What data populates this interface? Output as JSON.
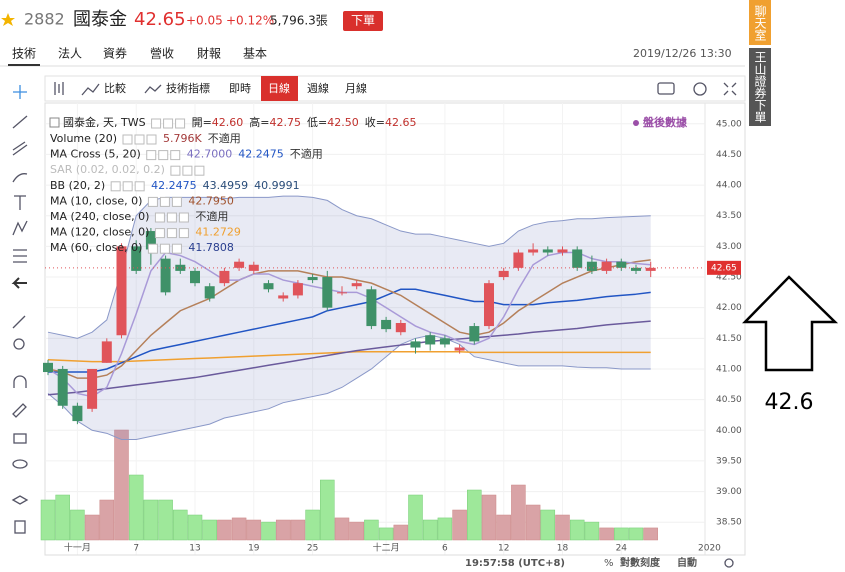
{
  "header": {
    "code": "2882",
    "name": "國泰金",
    "price": "42.65",
    "change": "+0.05",
    "change_pct": "+0.12%",
    "volume": "5,796.3張",
    "order_button": "下單"
  },
  "tabs": [
    "技術",
    "法人",
    "資券",
    "營收",
    "財報",
    "基本"
  ],
  "datetime": "2019/12/26 13:30",
  "side_tabs": [
    "聊天室",
    "王山證券下單"
  ],
  "toolbar": {
    "compare": "比較",
    "indicators": "技術指標",
    "intervals": [
      "即時",
      "日線",
      "週線",
      "月線"
    ]
  },
  "legend": {
    "symbol": "國泰金, 天, TWS",
    "ohlc": [
      {
        "label": "開=",
        "value": "42.60"
      },
      {
        "label": "高=",
        "value": "42.75"
      },
      {
        "label": "低=",
        "value": "42.50"
      },
      {
        "label": "收=",
        "value": "42.65"
      }
    ],
    "after_hours": "盤後數據",
    "indicators": [
      {
        "name": "Volume (20)",
        "readouts": [
          {
            "text": "5.796K",
            "color": "#a33a3a"
          },
          {
            "text": "不適用",
            "color": "#333333"
          }
        ]
      },
      {
        "name": "MA Cross (5, 20)",
        "readouts": [
          {
            "text": "42.7000",
            "color": "#7a6fc0"
          },
          {
            "text": "42.2475",
            "color": "#2155c4"
          },
          {
            "text": "不適用",
            "color": "#333333"
          }
        ]
      },
      {
        "name": "SAR (0.02, 0.02, 0.2)",
        "readouts": []
      },
      {
        "name": "BB (20, 2)",
        "readouts": [
          {
            "text": "42.2475",
            "color": "#2155c4"
          },
          {
            "text": "43.4959",
            "color": "#2a4d7a"
          },
          {
            "text": "40.9991",
            "color": "#2a4d7a"
          }
        ]
      },
      {
        "name": "MA (10, close, 0)",
        "readouts": [
          {
            "text": "42.7950",
            "color": "#a0522d"
          }
        ]
      },
      {
        "name": "MA (240, close, 0)",
        "readouts": [
          {
            "text": "不適用",
            "color": "#333333"
          }
        ]
      },
      {
        "name": "MA (120, close, 0)",
        "readouts": [
          {
            "text": "41.2729",
            "color": "#f0a030"
          }
        ]
      },
      {
        "name": "MA (60, close, 0)",
        "readouts": [
          {
            "text": "41.7808",
            "color": "#2a3f8f"
          }
        ]
      }
    ]
  },
  "status_bar": {
    "time": "19:57:58 (UTC+8)",
    "percent": "%",
    "log_scale": "對數刻度",
    "auto": "自動"
  },
  "annotation": "42.6",
  "chart_data": {
    "type": "candlestick",
    "categories": [
      null,
      null,
      "十一月",
      null,
      null,
      null,
      "7",
      null,
      null,
      null,
      "13",
      null,
      null,
      null,
      "19",
      null,
      null,
      null,
      "25",
      null,
      null,
      null,
      null,
      "十二月",
      null,
      null,
      null,
      "6",
      null,
      null,
      null,
      "12",
      null,
      null,
      null,
      "18",
      null,
      null,
      null,
      "24",
      null,
      null
    ],
    "x_end_label": "2020",
    "open": [
      41.1,
      41.0,
      40.4,
      40.35,
      41.1,
      41.55,
      43.0,
      43.25,
      42.8,
      42.7,
      42.6,
      42.35,
      42.4,
      42.65,
      42.6,
      42.4,
      42.15,
      42.2,
      42.5,
      42.5,
      42.25,
      42.35,
      42.3,
      41.8,
      41.6,
      41.45,
      41.55,
      41.5,
      41.3,
      41.7,
      41.7,
      42.5,
      42.65,
      42.9,
      42.95,
      42.9,
      42.95,
      42.75,
      42.6,
      42.75,
      42.65,
      42.6
    ],
    "high": [
      41.15,
      41.05,
      40.45,
      41.0,
      41.5,
      43.05,
      43.1,
      43.3,
      42.85,
      42.8,
      42.65,
      42.4,
      42.65,
      42.8,
      42.75,
      42.45,
      42.25,
      42.45,
      42.55,
      42.6,
      42.35,
      42.45,
      42.35,
      41.85,
      41.8,
      41.5,
      41.6,
      41.55,
      41.4,
      41.75,
      42.45,
      42.65,
      42.95,
      43.05,
      43.0,
      43.0,
      43.0,
      42.85,
      42.8,
      42.8,
      42.7,
      42.75
    ],
    "low": [
      40.9,
      40.35,
      40.1,
      40.3,
      41.1,
      41.5,
      42.55,
      42.7,
      42.2,
      42.55,
      42.35,
      42.1,
      42.35,
      42.6,
      42.55,
      42.25,
      42.1,
      42.15,
      42.4,
      41.95,
      42.2,
      42.3,
      41.65,
      41.6,
      41.55,
      41.25,
      41.3,
      41.35,
      41.25,
      41.4,
      41.65,
      42.45,
      42.6,
      42.85,
      42.85,
      42.85,
      42.6,
      42.55,
      42.55,
      42.6,
      42.55,
      42.5
    ],
    "close": [
      40.95,
      40.4,
      40.15,
      41.0,
      41.45,
      43.0,
      42.6,
      42.95,
      42.25,
      42.6,
      42.4,
      42.15,
      42.6,
      42.75,
      42.7,
      42.3,
      42.2,
      42.4,
      42.45,
      42.0,
      42.25,
      42.4,
      41.7,
      41.65,
      41.75,
      41.35,
      41.4,
      41.4,
      41.35,
      41.45,
      42.4,
      42.6,
      42.9,
      42.95,
      42.9,
      42.95,
      42.65,
      42.6,
      42.75,
      42.65,
      42.6,
      42.65
    ],
    "volume": [
      19.2,
      21.6,
      14.4,
      12,
      19.2,
      52.8,
      31.2,
      19.2,
      19.2,
      14.4,
      12,
      9.6,
      9.6,
      10.6,
      9.6,
      8.6,
      9.6,
      9.6,
      14.4,
      28.8,
      10.6,
      8.6,
      9.6,
      5.8,
      7.2,
      21.6,
      9.6,
      10.6,
      14.4,
      24,
      21.6,
      12,
      26.4,
      16.8,
      14.4,
      12,
      9.6,
      8.6,
      5.8,
      5.8,
      5.8,
      5.796
    ],
    "volume_lim": [
      0,
      120
    ],
    "up_color": "#e0545a",
    "down_color": "#3f9168",
    "volume_up_color": "#d9a3a6",
    "volume_down_color": "#9ee89a",
    "band": {
      "color": "#8a98c8",
      "fill": "rgba(120,130,190,0.17)",
      "upper": [
        41.6,
        41.55,
        41.5,
        41.6,
        41.8,
        42.6,
        43.5,
        43.75,
        43.8,
        43.8,
        43.8,
        43.8,
        43.78,
        43.8,
        43.8,
        43.8,
        43.82,
        43.82,
        43.8,
        43.75,
        43.6,
        43.5,
        43.45,
        43.35,
        43.25,
        43.2,
        43.2,
        43.15,
        43.1,
        43.05,
        43.0,
        43.05,
        43.25,
        43.35,
        43.4,
        43.42,
        43.45,
        43.45,
        43.47,
        43.48,
        43.49,
        43.5
      ],
      "lower": [
        40.6,
        40.4,
        40.15,
        40.0,
        39.95,
        39.85,
        39.85,
        39.9,
        39.95,
        40.0,
        40.05,
        40.1,
        40.2,
        40.25,
        40.3,
        40.35,
        40.45,
        40.5,
        40.55,
        40.6,
        40.7,
        40.85,
        41.0,
        41.2,
        41.4,
        41.5,
        41.55,
        41.5,
        41.4,
        41.2,
        41.15,
        41.1,
        41.05,
        41.05,
        41.05,
        41.05,
        41.03,
        41.02,
        41.02,
        41.0,
        41.0,
        41.0
      ]
    },
    "lines": [
      {
        "color": "#f0a030",
        "values": [
          41.15,
          41.14,
          41.13,
          41.12,
          41.12,
          41.12,
          41.13,
          41.14,
          41.15,
          41.16,
          41.17,
          41.18,
          41.19,
          41.2,
          41.21,
          41.22,
          41.23,
          41.24,
          41.25,
          41.26,
          41.27,
          41.28,
          41.28,
          41.28,
          41.28,
          41.28,
          41.28,
          41.28,
          41.28,
          41.27,
          41.27,
          41.27,
          41.27,
          41.27,
          41.27,
          41.27,
          41.27,
          41.27,
          41.27,
          41.27,
          41.27,
          41.27
        ]
      },
      {
        "color": "#6a5a9c",
        "values": [
          40.58,
          40.6,
          40.62,
          40.65,
          40.68,
          40.71,
          40.74,
          40.77,
          40.8,
          40.83,
          40.86,
          40.9,
          40.94,
          40.98,
          41.02,
          41.06,
          41.1,
          41.14,
          41.18,
          41.22,
          41.26,
          41.3,
          41.33,
          41.36,
          41.39,
          41.42,
          41.45,
          41.47,
          41.49,
          41.51,
          41.53,
          41.55,
          41.57,
          41.6,
          41.62,
          41.64,
          41.66,
          41.69,
          41.72,
          41.74,
          41.76,
          41.78
        ]
      },
      {
        "color": "#2155c4",
        "values": [
          40.95,
          40.95,
          40.95,
          40.95,
          41.0,
          41.1,
          41.2,
          41.3,
          41.35,
          41.4,
          41.45,
          41.5,
          41.55,
          41.6,
          41.65,
          41.7,
          41.75,
          41.8,
          41.85,
          41.95,
          42.0,
          42.05,
          42.1,
          42.2,
          42.3,
          42.3,
          42.25,
          42.2,
          42.15,
          42.1,
          42.1,
          42.05,
          42.05,
          42.05,
          42.08,
          42.1,
          42.12,
          42.15,
          42.18,
          42.2,
          42.22,
          42.25
        ]
      },
      {
        "color": "#b5805a",
        "values": [
          41.0,
          40.95,
          40.85,
          40.85,
          40.9,
          41.05,
          41.3,
          41.55,
          41.75,
          41.95,
          42.05,
          42.15,
          42.3,
          42.45,
          42.55,
          42.6,
          42.6,
          42.6,
          42.55,
          42.5,
          42.5,
          42.45,
          42.4,
          42.3,
          42.2,
          42.05,
          41.9,
          41.75,
          41.6,
          41.55,
          41.6,
          41.75,
          41.95,
          42.1,
          42.25,
          42.4,
          42.5,
          42.6,
          42.65,
          42.7,
          42.75,
          42.78
        ]
      },
      {
        "color": "#a99ad8",
        "values": [
          41.0,
          40.85,
          40.6,
          40.55,
          40.7,
          41.25,
          41.9,
          42.6,
          42.9,
          42.85,
          42.75,
          42.6,
          42.45,
          42.45,
          42.55,
          42.55,
          42.45,
          42.4,
          42.35,
          42.3,
          42.25,
          42.25,
          42.15,
          42.0,
          41.85,
          41.7,
          41.6,
          41.55,
          41.45,
          41.4,
          41.5,
          41.85,
          42.3,
          42.7,
          42.85,
          42.9,
          42.9,
          42.8,
          42.75,
          42.75,
          42.72,
          42.7
        ]
      }
    ],
    "ylim": [
      38.21,
      45.29
    ],
    "yticks": [
      {
        "value": 38.5,
        "label": "38.50"
      },
      {
        "value": 39,
        "label": "39.00"
      },
      {
        "value": 39.5,
        "label": "39.50"
      },
      {
        "value": 40,
        "label": "40.00"
      },
      {
        "value": 40.5,
        "label": "40.50"
      },
      {
        "value": 41,
        "label": "41.00"
      },
      {
        "value": 41.5,
        "label": "41.50"
      },
      {
        "value": 42,
        "label": "42.00"
      },
      {
        "value": 42.5,
        "label": "42.50"
      },
      {
        "value": 43,
        "label": "43.00"
      },
      {
        "value": 43.5,
        "label": "43.50"
      },
      {
        "value": 44,
        "label": "44.00"
      },
      {
        "value": 44.5,
        "label": "44.50"
      },
      {
        "value": 45,
        "label": "45.00"
      }
    ],
    "last_price": {
      "value": 42.65,
      "label": "42.65"
    },
    "grid": true
  }
}
